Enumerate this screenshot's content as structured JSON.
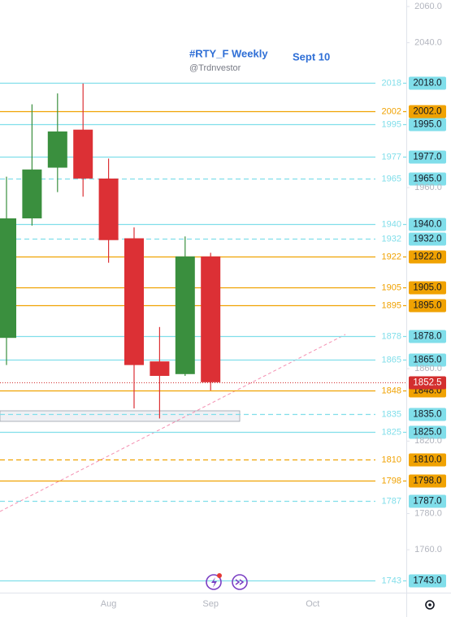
{
  "chart_data": {
    "type": "candlestick",
    "title": "#RTY_F Weekly",
    "subtitle": "@Trdnvestor",
    "annotation": "Sept 10",
    "categories": [
      null,
      null,
      null,
      null,
      "Aug",
      null,
      null,
      null,
      "Sep",
      null,
      null,
      null,
      "Oct",
      null,
      null,
      null
    ],
    "open": [
      1877,
      1943,
      1971,
      1992,
      1965,
      1932,
      1864,
      1857,
      1922,
      null,
      null,
      null,
      null,
      null,
      null,
      null
    ],
    "high": [
      1966,
      2006,
      2012,
      2017.5,
      1976,
      1938,
      1883,
      1933,
      1924,
      null,
      null,
      null,
      null,
      null,
      null,
      null
    ],
    "low": [
      1862,
      1939,
      1957.5,
      1955,
      1918.5,
      1838,
      1832.5,
      1856,
      1848,
      null,
      null,
      null,
      null,
      null,
      null,
      null
    ],
    "close": [
      1943,
      1970,
      1991,
      1965,
      1931,
      1862,
      1856,
      1922,
      1852.5,
      null,
      null,
      null,
      null,
      null,
      null,
      null
    ],
    "up_color": "#3a8f3e",
    "down_color": "#dc3035",
    "ylim": [
      1736.3,
      2063.6
    ],
    "yticks": [
      {
        "value": 2060,
        "label": "2060.0"
      },
      {
        "value": 2040,
        "label": "2040.0"
      },
      {
        "value": 1960,
        "label": "1960.0"
      },
      {
        "value": 1860,
        "label": "1860.0"
      },
      {
        "value": 1820,
        "label": "1820.0"
      },
      {
        "value": 1780,
        "label": "1780.0"
      },
      {
        "value": 1760,
        "label": "1760.0"
      }
    ],
    "levels": [
      {
        "value": 2018,
        "label": "2018.0",
        "color": "#80deea",
        "dashed": false
      },
      {
        "value": 2002,
        "label": "2002.0",
        "color": "#f0a202",
        "dashed": false
      },
      {
        "value": 1995,
        "label": "1995.0",
        "color": "#80deea",
        "dashed": false
      },
      {
        "value": 1977,
        "label": "1977.0",
        "color": "#80deea",
        "dashed": false
      },
      {
        "value": 1965,
        "label": "1965.0",
        "color": "#80deea",
        "dashed": true
      },
      {
        "value": 1940,
        "label": "1940.0",
        "color": "#80deea",
        "dashed": false
      },
      {
        "value": 1932,
        "label": "1932.0",
        "color": "#80deea",
        "dashed": true
      },
      {
        "value": 1922,
        "label": "1922.0",
        "color": "#f0a202",
        "dashed": false
      },
      {
        "value": 1905,
        "label": "1905.0",
        "color": "#f0a202",
        "dashed": false
      },
      {
        "value": 1895,
        "label": "1895.0",
        "color": "#f0a202",
        "dashed": false
      },
      {
        "value": 1878,
        "label": "1878.0",
        "color": "#80deea",
        "dashed": false
      },
      {
        "value": 1865,
        "label": "1865.0",
        "color": "#80deea",
        "dashed": false
      },
      {
        "value": 1848,
        "label": "1848.0",
        "color": "#f0a202",
        "dashed": false
      },
      {
        "value": 1835,
        "label": "1835.0",
        "color": "#80deea",
        "dashed": true
      },
      {
        "value": 1825,
        "label": "1825.0",
        "color": "#80deea",
        "dashed": false
      },
      {
        "value": 1810,
        "label": "1810.0",
        "color": "#f0a202",
        "dashed": true
      },
      {
        "value": 1798,
        "label": "1798.0",
        "color": "#f0a202",
        "dashed": false
      },
      {
        "value": 1787,
        "label": "1787.0",
        "color": "#80deea",
        "dashed": true
      },
      {
        "value": 1743,
        "label": "1743.0",
        "color": "#80deea",
        "dashed": false
      }
    ],
    "last_price": 1852.5,
    "last_price_color": "#d32f2f"
  }
}
